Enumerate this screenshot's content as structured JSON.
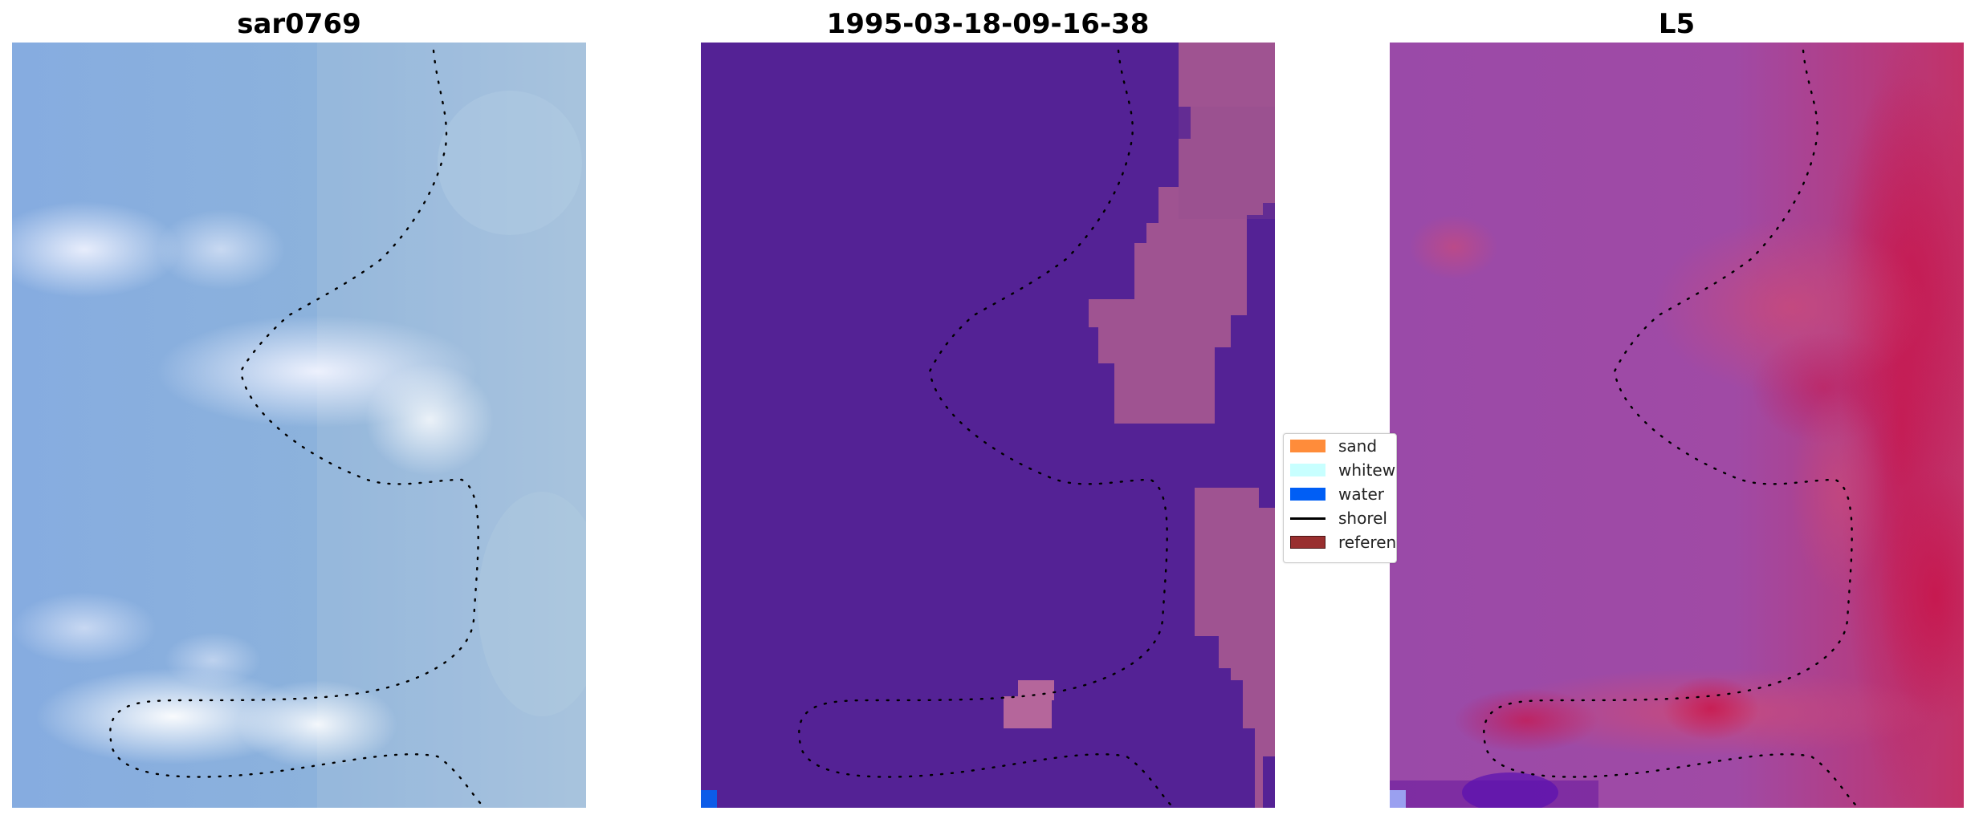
{
  "panels": [
    {
      "title": "sar0769"
    },
    {
      "title": "1995-03-18-09-16-38"
    },
    {
      "title": "L5"
    }
  ],
  "legend": {
    "items": [
      {
        "label": "sand",
        "color": "#ff8c3a"
      },
      {
        "label": "whitew",
        "color": "#c8ffff"
      },
      {
        "label": "water",
        "color": "#005ef5"
      },
      {
        "label": "shorel",
        "color": "#000000"
      },
      {
        "label": "referen",
        "color": "#992f2f"
      }
    ]
  },
  "colors": {
    "panel1_base": "#8fb3de",
    "panel2_water": "#542295",
    "panel2_sand_overlay": "#a35690",
    "panel3_base": "#9a4aa8",
    "panel3_high": "#c8144a"
  }
}
